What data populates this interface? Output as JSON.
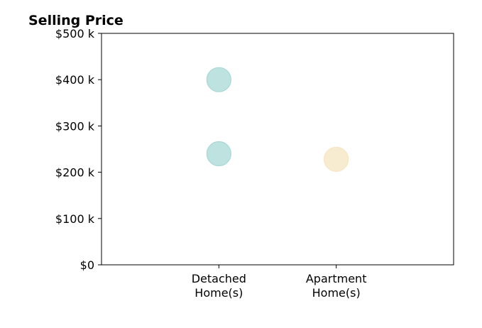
{
  "chart_data": {
    "type": "scatter",
    "title": "Selling Price",
    "xlabel": "",
    "ylabel": "",
    "categories": [
      "Detached\nHome(s)",
      "Apartment\nHome(s)"
    ],
    "x_positions": [
      1,
      2
    ],
    "xlim": [
      0,
      3
    ],
    "ylim": [
      0,
      500
    ],
    "yticks": [
      0,
      100,
      200,
      300,
      400,
      500
    ],
    "ytick_labels": [
      "$0",
      "$100 k",
      "$200 k",
      "$300 k",
      "$400 k",
      "$500 k"
    ],
    "grid": false,
    "points": [
      {
        "category": "Detached\nHome(s)",
        "x": 1,
        "y": 400,
        "color": "#a8d8d4"
      },
      {
        "category": "Detached\nHome(s)",
        "x": 1,
        "y": 240,
        "color": "#a8d8d4"
      },
      {
        "category": "Apartment\nHome(s)",
        "x": 2,
        "y": 228,
        "color": "#f6e5c0"
      }
    ]
  }
}
